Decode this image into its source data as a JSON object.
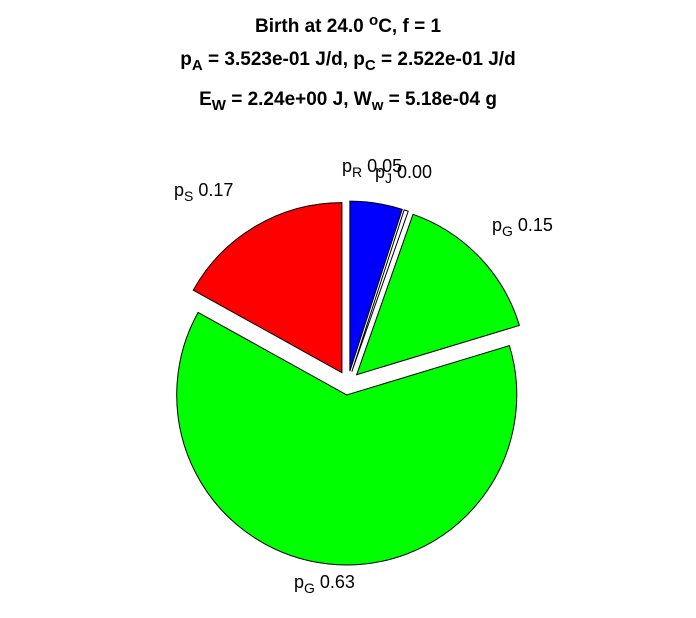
{
  "chart_data": {
    "type": "pie",
    "title_lines": [
      [
        {
          "t": "Birth at 24.0 "
        },
        {
          "t": "o",
          "s": "sup"
        },
        {
          "t": "C, f = 1"
        }
      ],
      [
        {
          "t": "p"
        },
        {
          "t": "A",
          "s": "sub"
        },
        {
          "t": " = 3.523e-01 J/d, p"
        },
        {
          "t": "C",
          "s": "sub"
        },
        {
          "t": " = 2.522e-01 J/d"
        }
      ],
      [
        {
          "t": "E"
        },
        {
          "t": "W",
          "s": "sub"
        },
        {
          "t": " = 2.24e+00 J, W"
        },
        {
          "t": "w",
          "s": "sub"
        },
        {
          "t": " = 5.18e-04 g"
        }
      ]
    ],
    "slices": [
      {
        "symbol": "p",
        "subscript": "R",
        "value_label": "0.05",
        "value": 0.05,
        "color": "#0000ff",
        "exploded": true
      },
      {
        "symbol": "p",
        "subscript": "J",
        "value_label": "0.00",
        "value": 0.004,
        "color": "#ffffff",
        "exploded": true
      },
      {
        "symbol": "p",
        "subscript": "G",
        "value_label": "0.15",
        "value": 0.15,
        "color": "#00ff00",
        "exploded": true
      },
      {
        "symbol": "p",
        "subscript": "G",
        "value_label": "0.63",
        "value": 0.63,
        "color": "#00ff00",
        "exploded": true
      },
      {
        "symbol": "p",
        "subscript": "S",
        "value_label": "0.17",
        "value": 0.17,
        "color": "#ff0000",
        "exploded": true
      }
    ],
    "start_direction": "top",
    "direction": "clockwise",
    "slice_edge_color": "#000000",
    "legend": "none"
  }
}
